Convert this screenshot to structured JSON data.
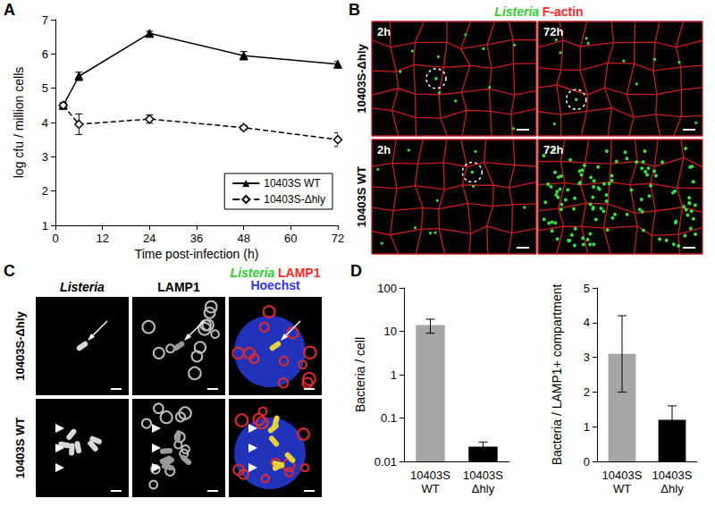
{
  "panel_labels": [
    "A",
    "B",
    "C",
    "D"
  ],
  "chart_data": [
    {
      "type": "line",
      "x_label": "Time post-infection (h)",
      "y_label": "log cfu / million cells",
      "x": [
        2,
        6,
        24,
        48,
        72
      ],
      "xlim": [
        0,
        72
      ],
      "xticks": [
        0,
        12,
        24,
        36,
        48,
        60,
        72
      ],
      "ylim": [
        1,
        7
      ],
      "yticks": [
        1,
        2,
        3,
        4,
        5,
        6,
        7
      ],
      "grid": false,
      "legend": "lower right",
      "series": [
        {
          "name": "10403S WT",
          "color": "#000000",
          "marker": "triangle",
          "line_style": "solid",
          "values": [
            4.5,
            5.35,
            6.6,
            5.95,
            5.7
          ],
          "errors": [
            0.08,
            0.12,
            0.06,
            0.12,
            0.08
          ]
        },
        {
          "name": "10403S-Δhly",
          "color": "#000000",
          "marker": "open_diamond",
          "line_style": "dashed",
          "values": [
            4.5,
            3.95,
            4.1,
            3.85,
            3.5
          ],
          "errors": [
            0.05,
            0.3,
            0.12,
            0.06,
            0.2
          ]
        }
      ]
    },
    {
      "type": "bar",
      "y_label": "Bacteria / cell",
      "categories": [
        "10403S WT",
        "10403S Δhly"
      ],
      "values": [
        14,
        0.022
      ],
      "errors": [
        5,
        0.006
      ],
      "colors": [
        "#a6a6a6",
        "#000000"
      ],
      "log": "y",
      "ylim": [
        0.01,
        100
      ],
      "yticks": [
        0.01,
        0.1,
        1,
        10,
        100
      ],
      "grid": false
    },
    {
      "type": "bar",
      "y_label": "Bacteria / LAMP1+ compartment",
      "categories": [
        "10403S WT",
        "10403S Δhly"
      ],
      "values": [
        3.1,
        1.2
      ],
      "errors": [
        1.1,
        0.4
      ],
      "colors": [
        "#a6a6a6",
        "#000000"
      ],
      "ylim": [
        0,
        5
      ],
      "yticks": [
        0,
        1,
        2,
        3,
        4,
        5
      ],
      "grid": false
    }
  ],
  "image_panels": [
    {
      "title": [
        {
          "text": "Listeria",
          "color": "#33cc33"
        },
        {
          "text": "F-actin",
          "color": "#ff2a2a"
        }
      ],
      "rows": [
        "10403S-Δhly",
        "10403S WT"
      ],
      "columns": [
        "2h",
        "72h"
      ]
    },
    {
      "title": [
        {
          "text": "Listeria",
          "color": "#33cc33"
        },
        {
          "text": "LAMP1",
          "color": "#ff2a2a"
        },
        {
          "text": "Hoechst",
          "color": "#3333ff"
        }
      ],
      "rows": [
        "10403S-Δhly",
        "10403S WT"
      ],
      "columns": [
        "Listeria",
        "LAMP1"
      ]
    }
  ]
}
